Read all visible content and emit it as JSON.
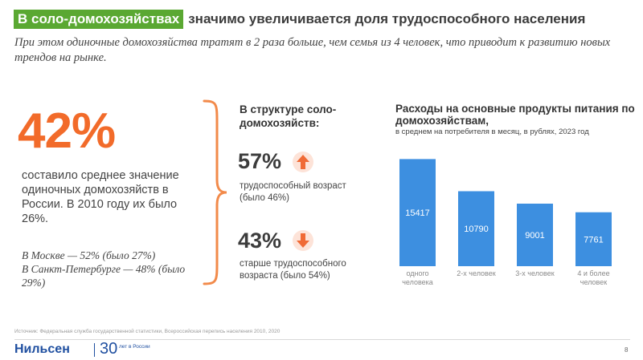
{
  "title": {
    "highlight": "В соло-домохозяйствах",
    "rest": "значимо увеличивается доля трудоспособного населения"
  },
  "subtitle": "При этом одиночные домохозяйства тратят в 2 раза больше, чем семья из 4 человек, что приводит к развитию новых трендов на рынке.",
  "left": {
    "big_percent": "42%",
    "description": "составило среднее значение одиночных домохозяйств в России. В 2010 году их было 26%.",
    "moscow": "В Москве — 52% (было 27%)",
    "spb": "В Санкт-Петербурге — 48% (было 29%)"
  },
  "structure": {
    "title": "В структуре соло-домохозяйств:",
    "stat1": {
      "percent": "57%",
      "desc": "трудоспособный возраст (было 46%)",
      "icon": "arrow-up-icon"
    },
    "stat2": {
      "percent": "43%",
      "desc": "старше трудоспособного возраста (было 54%)",
      "icon": "arrow-down-icon"
    }
  },
  "chart_data": {
    "type": "bar",
    "title": "Расходы на основные продукты питания по домохозяйствам,",
    "subtitle": "в среднем на потребителя в месяц, в рублях, 2023 год",
    "categories": [
      "одного человека",
      "2-х человек",
      "3-х человек",
      "4 и более человек"
    ],
    "values": [
      15417,
      10790,
      9001,
      7761
    ],
    "ylim": [
      0,
      16500
    ],
    "grid": false,
    "bar_color": "#3d8fe0"
  },
  "footer": {
    "source": "Источник: Федеральная служба государственной статистики, Всероссийская перепись населения 2010, 2020",
    "logo": "Нильсен",
    "logo_30": "30",
    "logo_small": "лет в России",
    "page_number": "8"
  },
  "colors": {
    "accent_green": "#5aa832",
    "accent_orange": "#f26b2a",
    "brand_blue": "#1f4fa0"
  }
}
